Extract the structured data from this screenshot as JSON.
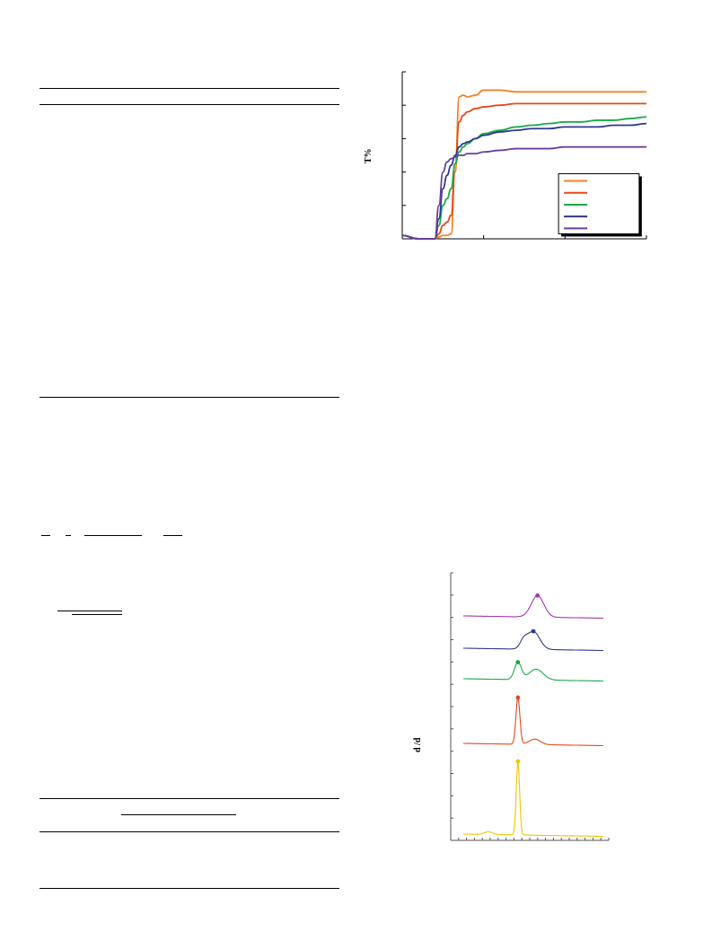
{
  "page": {
    "background": "#ffffff"
  },
  "chart_data": [
    {
      "type": "line",
      "ylabel": "T%",
      "legend_position": "bottom-right",
      "x": [
        0,
        20,
        40,
        45,
        50,
        55,
        60,
        65,
        70,
        75,
        80,
        90,
        100,
        120,
        140,
        160,
        180,
        200,
        220,
        240,
        260,
        280,
        300
      ],
      "ylim": [
        0,
        100
      ],
      "series": [
        {
          "color": "#f5821f",
          "values": [
            2,
            0,
            0,
            1,
            2,
            2,
            3,
            40,
            85,
            86,
            85,
            86,
            89,
            89,
            88,
            88,
            88,
            88,
            88,
            88,
            88,
            88,
            88
          ]
        },
        {
          "color": "#e8481c",
          "values": [
            2,
            0,
            0,
            3,
            8,
            10,
            14,
            45,
            70,
            74,
            76,
            78,
            79,
            80,
            81,
            81,
            81,
            81,
            81,
            81,
            81,
            81,
            81
          ]
        },
        {
          "color": "#1aa84a",
          "values": [
            2,
            0,
            0,
            8,
            20,
            24,
            30,
            45,
            52,
            55,
            57,
            60,
            63,
            65,
            67,
            68,
            69,
            70,
            70,
            71,
            71,
            72,
            73
          ]
        },
        {
          "color": "#2d3a8c",
          "values": [
            2,
            0,
            0,
            12,
            30,
            38,
            44,
            50,
            55,
            57,
            58,
            60,
            62,
            64,
            65,
            66,
            66,
            67,
            67,
            67,
            68,
            68,
            69
          ]
        },
        {
          "color": "#6a3e98",
          "values": [
            2,
            0,
            0,
            20,
            40,
            46,
            48,
            49,
            50,
            50,
            51,
            51,
            52,
            53,
            54,
            54,
            54,
            55,
            55,
            55,
            55,
            55,
            55
          ]
        }
      ]
    },
    {
      "type": "line",
      "ylabel": "d /d",
      "series": [
        {
          "color": "#a23aa8",
          "peak_x": 53
        },
        {
          "color": "#2d3a8c",
          "peak_x": 50
        },
        {
          "color": "#1aa84a",
          "peak_x": 39
        },
        {
          "color": "#e8481c",
          "peak_x": 39
        },
        {
          "color": "#f2c500",
          "peak_x": 39
        }
      ]
    }
  ]
}
